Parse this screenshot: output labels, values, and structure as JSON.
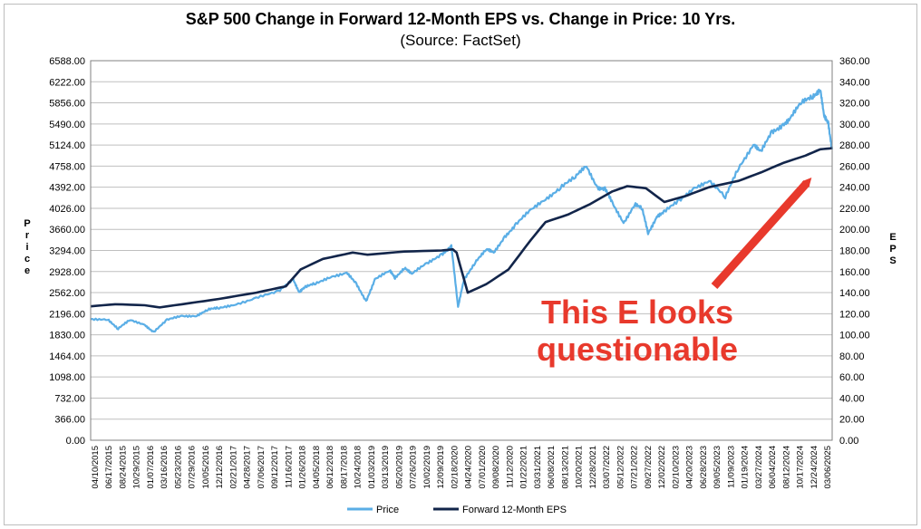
{
  "chart_data": {
    "type": "line",
    "title": "S&P 500 Change in Forward 12-Month EPS vs. Change in Price: 10 Yrs.",
    "subtitle": "(Source: FactSet)",
    "ylabel_left": "Price",
    "ylabel_right": "EPS",
    "ylim_left": [
      0,
      6588
    ],
    "ylim_right": [
      0,
      360
    ],
    "grid": true,
    "legend_position": "bottom",
    "left_ticks": [
      "6588.00",
      "6222.00",
      "5856.00",
      "5490.00",
      "5124.00",
      "4758.00",
      "4392.00",
      "4026.00",
      "3660.00",
      "3294.00",
      "2928.00",
      "2562.00",
      "2196.00",
      "1830.00",
      "1464.00",
      "1098.00",
      "732.00",
      "366.00",
      "0.00"
    ],
    "right_ticks": [
      "360.00",
      "340.00",
      "320.00",
      "300.00",
      "280.00",
      "260.00",
      "240.00",
      "220.00",
      "200.00",
      "180.00",
      "160.00",
      "140.00",
      "120.00",
      "100.00",
      "80.00",
      "60.00",
      "40.00",
      "20.00",
      "0.00"
    ],
    "x_tick_labels": [
      "04/10/2015",
      "06/17/2015",
      "08/24/2015",
      "10/29/2015",
      "01/07/2016",
      "03/16/2016",
      "05/23/2016",
      "07/29/2016",
      "10/05/2016",
      "12/12/2016",
      "02/21/2017",
      "04/28/2017",
      "07/06/2017",
      "09/12/2017",
      "11/16/2017",
      "01/26/2018",
      "04/05/2018",
      "06/12/2018",
      "08/17/2018",
      "10/24/2018",
      "01/03/2019",
      "03/13/2019",
      "05/20/2019",
      "07/26/2019",
      "10/02/2019",
      "12/09/2019",
      "02/18/2020",
      "04/24/2020",
      "07/01/2020",
      "09/08/2020",
      "11/12/2020",
      "01/22/2021",
      "03/31/2021",
      "06/08/2021",
      "08/13/2021",
      "10/20/2021",
      "12/28/2021",
      "03/07/2022",
      "05/12/2022",
      "07/21/2022",
      "09/27/2022",
      "12/02/2022",
      "02/10/2023",
      "04/20/2023",
      "06/28/2023",
      "09/05/2023",
      "11/09/2023",
      "01/19/2024",
      "03/27/2024",
      "06/04/2024",
      "08/12/2024",
      "10/17/2024",
      "12/24/2024",
      "03/06/2025"
    ],
    "series": [
      {
        "name": "Price",
        "color": "#5aaee6",
        "axis": "left",
        "x": [
          2015.27,
          2015.5,
          2015.64,
          2015.8,
          2016.0,
          2016.12,
          2016.3,
          2016.5,
          2016.7,
          2016.85,
          2017.0,
          2017.2,
          2017.5,
          2017.8,
          2018.0,
          2018.08,
          2018.15,
          2018.3,
          2018.5,
          2018.72,
          2018.85,
          2018.98,
          2019.1,
          2019.3,
          2019.37,
          2019.5,
          2019.6,
          2019.8,
          2020.0,
          2020.13,
          2020.22,
          2020.3,
          2020.45,
          2020.6,
          2020.7,
          2020.85,
          2021.0,
          2021.2,
          2021.4,
          2021.6,
          2021.8,
          2021.95,
          2022.1,
          2022.2,
          2022.3,
          2022.45,
          2022.6,
          2022.7,
          2022.78,
          2022.9,
          2023.0,
          2023.2,
          2023.4,
          2023.6,
          2023.82,
          2024.0,
          2024.2,
          2024.3,
          2024.45,
          2024.6,
          2024.7,
          2024.85,
          2025.0,
          2025.1,
          2025.15,
          2025.21,
          2025.26
        ],
        "values": [
          2100,
          2110,
          1930,
          2080,
          2010,
          1880,
          2080,
          2160,
          2170,
          2260,
          2290,
          2360,
          2470,
          2570,
          2800,
          2580,
          2640,
          2720,
          2850,
          2900,
          2700,
          2420,
          2800,
          2930,
          2820,
          3010,
          2880,
          3060,
          3240,
          3370,
          2300,
          2800,
          3100,
          3300,
          3250,
          3550,
          3740,
          3980,
          4200,
          4400,
          4550,
          4760,
          4400,
          4350,
          4100,
          3790,
          4100,
          4000,
          3600,
          3900,
          3950,
          4150,
          4400,
          4500,
          4200,
          4750,
          5150,
          4980,
          5350,
          5500,
          5580,
          5850,
          6000,
          6100,
          5600,
          5500,
          5050
        ]
      },
      {
        "name": "Forward 12-Month EPS",
        "color": "#12254a",
        "axis": "right",
        "x": [
          2015.27,
          2015.6,
          2016.0,
          2016.2,
          2016.6,
          2017.0,
          2017.5,
          2017.9,
          2018.1,
          2018.4,
          2018.8,
          2019.0,
          2019.5,
          2020.0,
          2020.15,
          2020.2,
          2020.35,
          2020.6,
          2020.9,
          2021.2,
          2021.4,
          2021.7,
          2022.0,
          2022.3,
          2022.5,
          2022.75,
          2023.0,
          2023.3,
          2023.6,
          2024.0,
          2024.3,
          2024.6,
          2024.9,
          2025.1,
          2025.26
        ],
        "values": [
          127,
          129,
          128,
          126,
          130,
          134,
          140,
          146,
          162,
          172,
          178,
          176,
          179,
          180,
          181,
          178,
          140,
          148,
          162,
          190,
          207,
          214,
          224,
          236,
          241,
          239,
          226,
          232,
          240,
          246,
          254,
          263,
          270,
          276,
          277
        ]
      }
    ],
    "annotation": {
      "line1": "This E looks",
      "line2": "questionable",
      "color": "#e8392c"
    }
  }
}
